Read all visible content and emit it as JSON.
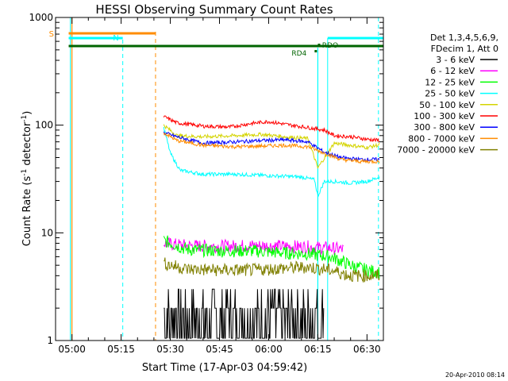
{
  "chart_data": {
    "type": "line",
    "title": "HESSI Observing Summary Count Rates",
    "xlabel": "Start Time (17-Apr-03 04:59:42)",
    "ylabel_main": "Count Rate (s",
    "ylabel_sup1": "-1",
    "ylabel_mid": " detector",
    "ylabel_sup2": "-1",
    "ylabel_end": ")",
    "yscale": "log",
    "xlim_minutes": [
      -5,
      95
    ],
    "ylim": [
      1,
      1000
    ],
    "x_ticks": [
      {
        "minutes": 0,
        "label": "05:00"
      },
      {
        "minutes": 15,
        "label": "05:15"
      },
      {
        "minutes": 30,
        "label": "05:30"
      },
      {
        "minutes": 45,
        "label": "05:45"
      },
      {
        "minutes": 60,
        "label": "06:00"
      },
      {
        "minutes": 75,
        "label": "06:15"
      },
      {
        "minutes": 90,
        "label": "06:30"
      }
    ],
    "y_ticks": [
      {
        "value": 1,
        "label": "1"
      },
      {
        "value": 10,
        "label": "10"
      },
      {
        "value": 100,
        "label": "100"
      },
      {
        "value": 1000,
        "label": "1000"
      }
    ],
    "legend": {
      "header1": "Det 1,3,4,5,6,9,",
      "header2": "FDecim 1, Att 0",
      "placement": "right"
    },
    "series": [
      {
        "name": "3 - 6 keV",
        "color": "#000000",
        "x": [
          28,
          35,
          45,
          55,
          65,
          72,
          77
        ],
        "y": [
          1.6,
          1.7,
          1.6,
          1.6,
          1.7,
          1.6,
          1.6
        ],
        "noisy_low": true
      },
      {
        "name": "6 - 12 keV",
        "color": "#ff00ff",
        "x": [
          28,
          35,
          45,
          55,
          65,
          72,
          79,
          83
        ],
        "y": [
          8.0,
          7.6,
          7.5,
          7.6,
          7.5,
          7.4,
          7.2,
          7.0
        ]
      },
      {
        "name": "12 - 25 keV",
        "color": "#00ff00",
        "x": [
          28,
          35,
          45,
          55,
          65,
          72,
          79,
          85,
          90,
          94
        ],
        "y": [
          8.5,
          7.0,
          6.8,
          6.8,
          6.5,
          6.4,
          6.0,
          5.0,
          4.5,
          4.3
        ]
      },
      {
        "name": "25 - 50 keV",
        "color": "#00ffff",
        "x": [
          28,
          30,
          33,
          40,
          50,
          60,
          70,
          74,
          75,
          77,
          80,
          85,
          90,
          94
        ],
        "y": [
          95,
          55,
          38,
          35,
          35,
          34,
          33,
          31,
          22,
          30,
          30,
          29,
          30,
          33
        ]
      },
      {
        "name": "50 - 100 keV",
        "color": "#d4d400",
        "x": [
          28,
          32,
          40,
          50,
          58,
          65,
          72,
          75,
          80,
          85,
          90,
          94
        ],
        "y": [
          100,
          80,
          78,
          80,
          82,
          78,
          75,
          40,
          68,
          65,
          62,
          66
        ]
      },
      {
        "name": "100 - 300 keV",
        "color": "#ff0000",
        "x": [
          28,
          32,
          40,
          48,
          55,
          60,
          65,
          72,
          77,
          80,
          85,
          90,
          94
        ],
        "y": [
          120,
          105,
          98,
          96,
          104,
          108,
          102,
          95,
          90,
          80,
          78,
          74,
          72
        ]
      },
      {
        "name": "300 - 800 keV",
        "color": "#0000ff",
        "x": [
          28,
          32,
          40,
          50,
          58,
          65,
          72,
          77,
          82,
          88,
          94
        ],
        "y": [
          85,
          78,
          68,
          70,
          72,
          73,
          70,
          56,
          50,
          48,
          48
        ]
      },
      {
        "name": "800 - 7000 keV",
        "color": "#ff8c00",
        "x": [
          28,
          32,
          40,
          50,
          58,
          65,
          72,
          77,
          82,
          88,
          94
        ],
        "y": [
          85,
          72,
          65,
          63,
          64,
          65,
          63,
          55,
          48,
          46,
          46
        ]
      },
      {
        "name": "7000 - 20000 keV",
        "color": "#808000",
        "x": [
          28,
          35,
          45,
          55,
          65,
          72,
          79,
          85,
          90,
          94
        ],
        "y": [
          5.2,
          4.6,
          4.5,
          4.5,
          4.7,
          4.8,
          4.5,
          4.0,
          4.0,
          4.0
        ]
      }
    ],
    "flag_labels": {
      "s": "S",
      "n": "N",
      "rd4": "RD4",
      "rdo": "RDO"
    },
    "flag_colors": {
      "s": "#ff8c00",
      "n": "#00ffff",
      "rd4": "#006400",
      "rdo": "#006400"
    },
    "footer_date": "20-Apr-2010 08:14"
  }
}
